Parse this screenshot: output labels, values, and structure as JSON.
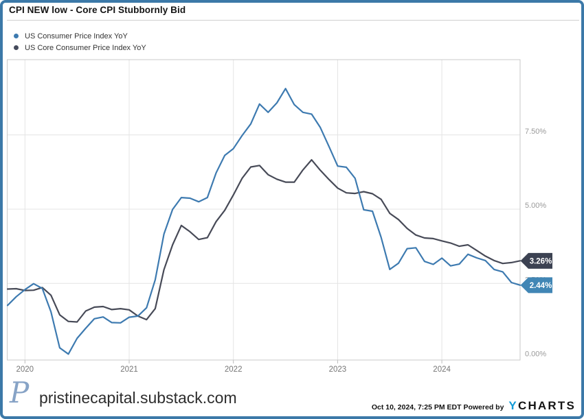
{
  "window": {
    "border_color": "#3c79a8"
  },
  "header": {
    "title": "CPI NEW low - Core CPI Stubbornly Bid"
  },
  "legend": {
    "items": [
      {
        "label": "US Consumer Price Index YoY",
        "color": "#3d7ab0"
      },
      {
        "label": "US Core Consumer Price Index YoY",
        "color": "#454b5c"
      }
    ]
  },
  "chart_data": {
    "type": "line",
    "title": "CPI NEW low - Core CPI Stubbornly Bid",
    "xlabel": "",
    "ylabel": "",
    "x_interval": "monthly",
    "x_range": [
      "2019-10",
      "2024-09"
    ],
    "x_tick_labels": [
      "2020",
      "2021",
      "2022",
      "2023",
      "2024"
    ],
    "y_ticks": [
      0,
      2.5,
      5,
      7.5
    ],
    "y_tick_labels": [
      "0.00%",
      "2.50%",
      "5.00%",
      "7.50%"
    ],
    "ylim": [
      -0.1,
      10.0
    ],
    "grid": true,
    "legend_position": "top-left",
    "series": [
      {
        "name": "US Consumer Price Index YoY",
        "color": "#3d7ab0",
        "end_label": "2.44%",
        "end_label_bg": "#4186b5",
        "values": [
          1.76,
          2.05,
          2.29,
          2.49,
          2.33,
          1.54,
          0.33,
          0.12,
          0.65,
          0.99,
          1.31,
          1.37,
          1.18,
          1.17,
          1.36,
          1.4,
          1.68,
          2.62,
          4.16,
          4.99,
          5.39,
          5.37,
          5.25,
          5.39,
          6.22,
          6.81,
          7.04,
          7.48,
          7.87,
          8.54,
          8.26,
          8.58,
          9.06,
          8.52,
          8.26,
          8.2,
          7.75,
          7.11,
          6.45,
          6.41,
          6.04,
          4.98,
          4.93,
          4.05,
          2.97,
          3.18,
          3.67,
          3.7,
          3.24,
          3.14,
          3.35,
          3.09,
          3.15,
          3.48,
          3.36,
          3.27,
          2.97,
          2.89,
          2.53,
          2.44
        ]
      },
      {
        "name": "US Core Consumer Price Index YoY",
        "color": "#474a57",
        "end_label": "3.26%",
        "end_label_bg": "#3c4252",
        "values": [
          2.31,
          2.32,
          2.26,
          2.27,
          2.36,
          2.1,
          1.44,
          1.22,
          1.2,
          1.57,
          1.7,
          1.72,
          1.62,
          1.65,
          1.61,
          1.4,
          1.28,
          1.65,
          2.96,
          3.8,
          4.45,
          4.24,
          3.98,
          4.04,
          4.58,
          4.96,
          5.48,
          6.04,
          6.42,
          6.47,
          6.16,
          6.01,
          5.91,
          5.91,
          6.32,
          6.66,
          6.31,
          6.0,
          5.71,
          5.55,
          5.53,
          5.59,
          5.52,
          5.33,
          4.86,
          4.65,
          4.35,
          4.13,
          4.03,
          4.01,
          3.93,
          3.86,
          3.75,
          3.8,
          3.61,
          3.42,
          3.27,
          3.17,
          3.2,
          3.26
        ]
      }
    ]
  },
  "footer": {
    "logo_glyph": "P",
    "site": "pristinecapital.substack.com",
    "timestamp_powered": "Oct 10, 2024, 7:25 PM EDT Powered by",
    "ycharts_y": "Y",
    "ycharts_rest": "CHARTS"
  }
}
